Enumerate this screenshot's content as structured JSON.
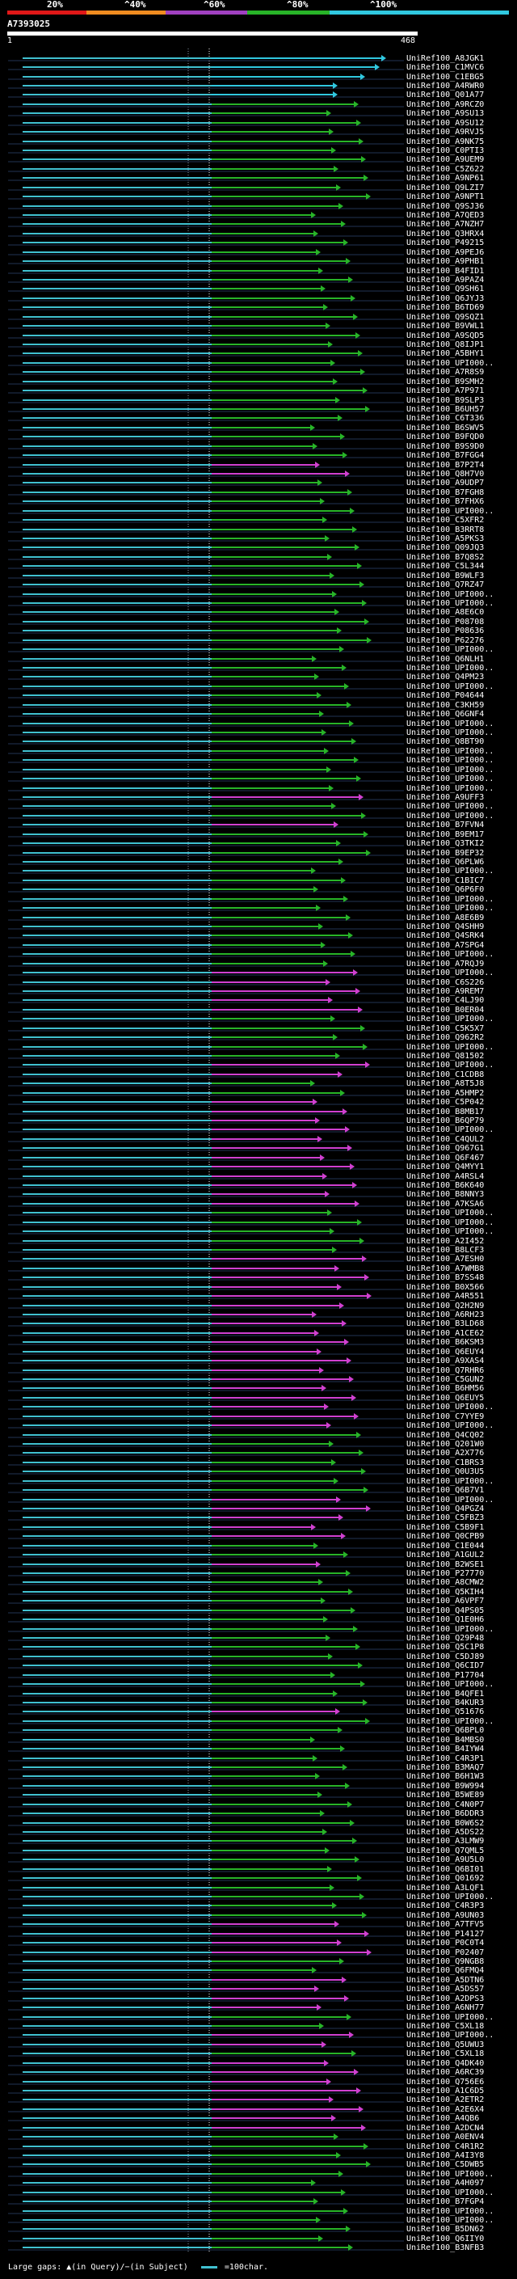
{
  "colors": {
    "background": "#000000",
    "identity_lt20": "#e01818",
    "identity_20_40": "#f08c20",
    "identity_40_60": "#a040c0",
    "identity_60_80": "#28b428",
    "identity_80_100": "#30c8e0",
    "query_line": "#40c0d0",
    "ruler": "#ffffff",
    "row_separator": "#223355"
  },
  "identity_scale": [
    {
      "label": "20%",
      "color": "#e01818"
    },
    {
      "label": "^40%",
      "color": "#f08c20"
    },
    {
      "label": "^60%",
      "color": "#a040c0"
    },
    {
      "label": "^80%",
      "color": "#28b428"
    },
    {
      "label": "^100%",
      "color": "#30c8e0"
    }
  ],
  "query": {
    "id": "A7393025",
    "start": "1",
    "end": "468"
  },
  "hits": [
    {
      "label": "UniRef100_A8JGK1",
      "color": "cyan"
    },
    {
      "label": "UniRef100_C1MVC6",
      "color": "cyan"
    },
    {
      "label": "UniRef100_C1EBG5",
      "color": "cyan"
    },
    {
      "label": "UniRef100_A4RWR0",
      "color": "cyan"
    },
    {
      "label": "UniRef100_Q01A77",
      "color": "cyan"
    },
    {
      "label": "UniRef100_A9RCZ0",
      "color": "green"
    },
    {
      "label": "UniRef100_A9SU13",
      "color": "green"
    },
    {
      "label": "UniRef100_A9SU12",
      "color": "green"
    },
    {
      "label": "UniRef100_A9RVJ5",
      "color": "green"
    },
    {
      "label": "UniRef100_A9NK75",
      "color": "green"
    },
    {
      "label": "UniRef100_C0PTI3",
      "color": "green"
    },
    {
      "label": "UniRef100_A9UEM9",
      "color": "green"
    },
    {
      "label": "UniRef100_C5Z622",
      "color": "green"
    },
    {
      "label": "UniRef100_A9NP61",
      "color": "green"
    },
    {
      "label": "UniRef100_Q9LZI7",
      "color": "green"
    },
    {
      "label": "UniRef100_A9NPT1",
      "color": "green"
    },
    {
      "label": "UniRef100_Q9SJ36",
      "color": "green"
    },
    {
      "label": "UniRef100_A7QED3",
      "color": "green"
    },
    {
      "label": "UniRef100_A7NZH7",
      "color": "green"
    },
    {
      "label": "UniRef100_Q3HRX4",
      "color": "green"
    },
    {
      "label": "UniRef100_P49215",
      "color": "green"
    },
    {
      "label": "UniRef100_A9PEJ6",
      "color": "green"
    },
    {
      "label": "UniRef100_A9PHB1",
      "color": "green"
    },
    {
      "label": "UniRef100_B4FID1",
      "color": "green"
    },
    {
      "label": "UniRef100_A9PAZ4",
      "color": "green"
    },
    {
      "label": "UniRef100_Q9SH61",
      "color": "green"
    },
    {
      "label": "UniRef100_Q6JYJ3",
      "color": "green"
    },
    {
      "label": "UniRef100_B6TD69",
      "color": "green"
    },
    {
      "label": "UniRef100_Q9SQZ1",
      "color": "green"
    },
    {
      "label": "UniRef100_B9VWL1",
      "color": "green"
    },
    {
      "label": "UniRef100_A9SQD5",
      "color": "green"
    },
    {
      "label": "UniRef100_Q8IJP1",
      "color": "green"
    },
    {
      "label": "UniRef100_A5BHY1",
      "color": "green"
    },
    {
      "label": "UniRef100_UPI000..",
      "color": "green"
    },
    {
      "label": "UniRef100_A7R8S9",
      "color": "green"
    },
    {
      "label": "UniRef100_B9SMH2",
      "color": "green"
    },
    {
      "label": "UniRef100_A7P971",
      "color": "green"
    },
    {
      "label": "UniRef100_B9SLP3",
      "color": "green"
    },
    {
      "label": "UniRef100_B6UH57",
      "color": "green"
    },
    {
      "label": "UniRef100_C6T336",
      "color": "green"
    },
    {
      "label": "UniRef100_B6SWV5",
      "color": "green"
    },
    {
      "label": "UniRef100_B9FQD0",
      "color": "green"
    },
    {
      "label": "UniRef100_B9S9D0",
      "color": "green"
    },
    {
      "label": "UniRef100_B7FGG4",
      "color": "green"
    },
    {
      "label": "UniRef100_B7P2T4",
      "color": "magenta"
    },
    {
      "label": "UniRef100_Q8H7V0",
      "color": "magenta"
    },
    {
      "label": "UniRef100_A9UDP7",
      "color": "green"
    },
    {
      "label": "UniRef100_B7FGH8",
      "color": "green"
    },
    {
      "label": "UniRef100_B7FHX6",
      "color": "green"
    },
    {
      "label": "UniRef100_UPI000..",
      "color": "green"
    },
    {
      "label": "UniRef100_C5XFR2",
      "color": "green"
    },
    {
      "label": "UniRef100_B3RRT8",
      "color": "green"
    },
    {
      "label": "UniRef100_A5PKS3",
      "color": "green"
    },
    {
      "label": "UniRef100_Q09JQ3",
      "color": "green"
    },
    {
      "label": "UniRef100_B7Q8S2",
      "color": "green"
    },
    {
      "label": "UniRef100_C5L344",
      "color": "green"
    },
    {
      "label": "UniRef100_B9WLF3",
      "color": "green"
    },
    {
      "label": "UniRef100_Q7RZ47",
      "color": "green"
    },
    {
      "label": "UniRef100_UPI000..",
      "color": "green"
    },
    {
      "label": "UniRef100_UPI000..",
      "color": "green"
    },
    {
      "label": "UniRef100_A8E6C0",
      "color": "green"
    },
    {
      "label": "UniRef100_P08708",
      "color": "green"
    },
    {
      "label": "UniRef100_P08636",
      "color": "green"
    },
    {
      "label": "UniRef100_P62276",
      "color": "green"
    },
    {
      "label": "UniRef100_UPI000..",
      "color": "green"
    },
    {
      "label": "UniRef100_Q6NLH1",
      "color": "green"
    },
    {
      "label": "UniRef100_UPI000..",
      "color": "green"
    },
    {
      "label": "UniRef100_Q4PM23",
      "color": "green"
    },
    {
      "label": "UniRef100_UPI000..",
      "color": "green"
    },
    {
      "label": "UniRef100_P04644",
      "color": "green"
    },
    {
      "label": "UniRef100_C3KH59",
      "color": "green"
    },
    {
      "label": "UniRef100_Q6GNF4",
      "color": "green"
    },
    {
      "label": "UniRef100_UPI000..",
      "color": "green"
    },
    {
      "label": "UniRef100_UPI000..",
      "color": "green"
    },
    {
      "label": "UniRef100_Q8BT90",
      "color": "green"
    },
    {
      "label": "UniRef100_UPI000..",
      "color": "green"
    },
    {
      "label": "UniRef100_UPI000..",
      "color": "green"
    },
    {
      "label": "UniRef100_UPI000..",
      "color": "green"
    },
    {
      "label": "UniRef100_UPI000..",
      "color": "green"
    },
    {
      "label": "UniRef100_UPI000..",
      "color": "green"
    },
    {
      "label": "UniRef100_A9UFF3",
      "color": "magenta"
    },
    {
      "label": "UniRef100_UPI000..",
      "color": "green"
    },
    {
      "label": "UniRef100_UPI000..",
      "color": "green"
    },
    {
      "label": "UniRef100_B7FVN4",
      "color": "magenta"
    },
    {
      "label": "UniRef100_B9EM17",
      "color": "green"
    },
    {
      "label": "UniRef100_Q3TKI2",
      "color": "green"
    },
    {
      "label": "UniRef100_B9EP32",
      "color": "green"
    },
    {
      "label": "UniRef100_Q6PLW6",
      "color": "green"
    },
    {
      "label": "UniRef100_UPI000..",
      "color": "green"
    },
    {
      "label": "UniRef100_C1BIC7",
      "color": "green"
    },
    {
      "label": "UniRef100_Q6P6F0",
      "color": "green"
    },
    {
      "label": "UniRef100_UPI000..",
      "color": "green"
    },
    {
      "label": "UniRef100_UPI000..",
      "color": "green"
    },
    {
      "label": "UniRef100_A8E6B9",
      "color": "green"
    },
    {
      "label": "UniRef100_Q4SHH9",
      "color": "green"
    },
    {
      "label": "UniRef100_Q4SRK4",
      "color": "green"
    },
    {
      "label": "UniRef100_A7SPG4",
      "color": "green"
    },
    {
      "label": "UniRef100_UPI000..",
      "color": "green"
    },
    {
      "label": "UniRef100_A7RQJ9",
      "color": "green"
    },
    {
      "label": "UniRef100_UPI000..",
      "color": "magenta"
    },
    {
      "label": "UniRef100_C6S226",
      "color": "magenta"
    },
    {
      "label": "UniRef100_A9REM7",
      "color": "magenta"
    },
    {
      "label": "UniRef100_C4LJ90",
      "color": "magenta"
    },
    {
      "label": "UniRef100_B0ER04",
      "color": "magenta"
    },
    {
      "label": "UniRef100_UPI000..",
      "color": "green"
    },
    {
      "label": "UniRef100_C5K5X7",
      "color": "green"
    },
    {
      "label": "UniRef100_Q962R2",
      "color": "green"
    },
    {
      "label": "UniRef100_UPI000..",
      "color": "green"
    },
    {
      "label": "UniRef100_Q81502",
      "color": "green"
    },
    {
      "label": "UniRef100_UPI000..",
      "color": "magenta"
    },
    {
      "label": "UniRef100_C1CDB8",
      "color": "magenta"
    },
    {
      "label": "UniRef100_A8T5J8",
      "color": "green"
    },
    {
      "label": "UniRef100_A5HMP2",
      "color": "green"
    },
    {
      "label": "UniRef100_C5P042",
      "color": "magenta"
    },
    {
      "label": "UniRef100_B8MB17",
      "color": "magenta"
    },
    {
      "label": "UniRef100_B6QP79",
      "color": "magenta"
    },
    {
      "label": "UniRef100_UPI000..",
      "color": "magenta"
    },
    {
      "label": "UniRef100_C4QUL2",
      "color": "magenta"
    },
    {
      "label": "UniRef100_Q967G1",
      "color": "magenta"
    },
    {
      "label": "UniRef100_Q6F467",
      "color": "magenta"
    },
    {
      "label": "UniRef100_Q4MYY1",
      "color": "magenta"
    },
    {
      "label": "UniRef100_A4RSL4",
      "color": "magenta"
    },
    {
      "label": "UniRef100_B6K640",
      "color": "magenta"
    },
    {
      "label": "UniRef100_B8NNY3",
      "color": "magenta"
    },
    {
      "label": "UniRef100_A7KSA6",
      "color": "magenta"
    },
    {
      "label": "UniRef100_UPI000..",
      "color": "green"
    },
    {
      "label": "UniRef100_UPI000..",
      "color": "green"
    },
    {
      "label": "UniRef100_UPI000..",
      "color": "green"
    },
    {
      "label": "UniRef100_A2I452",
      "color": "green"
    },
    {
      "label": "UniRef100_B8LCF3",
      "color": "green"
    },
    {
      "label": "UniRef100_A7ESH0",
      "color": "magenta"
    },
    {
      "label": "UniRef100_A7WMB8",
      "color": "magenta"
    },
    {
      "label": "UniRef100_B7SS48",
      "color": "magenta"
    },
    {
      "label": "UniRef100_B0X566",
      "color": "magenta"
    },
    {
      "label": "UniRef100_A4R551",
      "color": "magenta"
    },
    {
      "label": "UniRef100_Q2H2N9",
      "color": "magenta"
    },
    {
      "label": "UniRef100_A6RH23",
      "color": "magenta"
    },
    {
      "label": "UniRef100_B3LD68",
      "color": "magenta"
    },
    {
      "label": "UniRef100_A1CE62",
      "color": "magenta"
    },
    {
      "label": "UniRef100_B6KSM3",
      "color": "magenta"
    },
    {
      "label": "UniRef100_Q6EUY4",
      "color": "magenta"
    },
    {
      "label": "UniRef100_A9XAS4",
      "color": "magenta"
    },
    {
      "label": "UniRef100_Q7RHR6",
      "color": "magenta"
    },
    {
      "label": "UniRef100_C5GUN2",
      "color": "magenta"
    },
    {
      "label": "UniRef100_B6HM56",
      "color": "magenta"
    },
    {
      "label": "UniRef100_Q6EUY5",
      "color": "magenta"
    },
    {
      "label": "UniRef100_UPI000..",
      "color": "magenta"
    },
    {
      "label": "UniRef100_C7YYE9",
      "color": "magenta"
    },
    {
      "label": "UniRef100_UPI000..",
      "color": "magenta"
    },
    {
      "label": "UniRef100_Q4CQ02",
      "color": "green"
    },
    {
      "label": "UniRef100_Q201W0",
      "color": "green"
    },
    {
      "label": "UniRef100_A2X776",
      "color": "green"
    },
    {
      "label": "UniRef100_C1BRS3",
      "color": "green"
    },
    {
      "label": "UniRef100_Q0U3U5",
      "color": "green"
    },
    {
      "label": "UniRef100_UPI000..",
      "color": "green"
    },
    {
      "label": "UniRef100_Q6B7V1",
      "color": "green"
    },
    {
      "label": "UniRef100_UPI000..",
      "color": "magenta"
    },
    {
      "label": "UniRef100_Q4PGZ4",
      "color": "magenta"
    },
    {
      "label": "UniRef100_C5FBZ3",
      "color": "magenta"
    },
    {
      "label": "UniRef100_C5B9F1",
      "color": "magenta"
    },
    {
      "label": "UniRef100_Q0CPB9",
      "color": "magenta"
    },
    {
      "label": "UniRef100_C1E044",
      "color": "green"
    },
    {
      "label": "UniRef100_A1GUL2",
      "color": "green"
    },
    {
      "label": "UniRef100_B2WSE1",
      "color": "magenta"
    },
    {
      "label": "UniRef100_P27770",
      "color": "green"
    },
    {
      "label": "UniRef100_A8CMW2",
      "color": "green"
    },
    {
      "label": "UniRef100_Q5KIH4",
      "color": "green"
    },
    {
      "label": "UniRef100_A6VPF7",
      "color": "green"
    },
    {
      "label": "UniRef100_Q4PS05",
      "color": "green"
    },
    {
      "label": "UniRef100_Q1E0H6",
      "color": "green"
    },
    {
      "label": "UniRef100_UPI000..",
      "color": "green"
    },
    {
      "label": "UniRef100_Q29P48",
      "color": "green"
    },
    {
      "label": "UniRef100_Q5C1P8",
      "color": "green"
    },
    {
      "label": "UniRef100_C5DJ89",
      "color": "green"
    },
    {
      "label": "UniRef100_Q6CID7",
      "color": "green"
    },
    {
      "label": "UniRef100_P17704",
      "color": "green"
    },
    {
      "label": "UniRef100_UPI000..",
      "color": "green"
    },
    {
      "label": "UniRef100_B4QFE1",
      "color": "green"
    },
    {
      "label": "UniRef100_B4KUR3",
      "color": "green"
    },
    {
      "label": "UniRef100_Q51676",
      "color": "magenta"
    },
    {
      "label": "UniRef100_UPI000..",
      "color": "green"
    },
    {
      "label": "UniRef100_Q6BPL0",
      "color": "green"
    },
    {
      "label": "UniRef100_B4MBS0",
      "color": "green"
    },
    {
      "label": "UniRef100_B4IYW4",
      "color": "green"
    },
    {
      "label": "UniRef100_C4R3P1",
      "color": "green"
    },
    {
      "label": "UniRef100_B3MAQ7",
      "color": "green"
    },
    {
      "label": "UniRef100_B6H1W3",
      "color": "green"
    },
    {
      "label": "UniRef100_B9W994",
      "color": "green"
    },
    {
      "label": "UniRef100_B5WE89",
      "color": "green"
    },
    {
      "label": "UniRef100_C4N0P7",
      "color": "green"
    },
    {
      "label": "UniRef100_B6DDR3",
      "color": "green"
    },
    {
      "label": "UniRef100_B0W6S2",
      "color": "green"
    },
    {
      "label": "UniRef100_A5DS22",
      "color": "green"
    },
    {
      "label": "UniRef100_A3LMW9",
      "color": "green"
    },
    {
      "label": "UniRef100_Q7QML5",
      "color": "green"
    },
    {
      "label": "UniRef100_A9U5L0",
      "color": "green"
    },
    {
      "label": "UniRef100_Q6BI01",
      "color": "green"
    },
    {
      "label": "UniRef100_Q01692",
      "color": "green"
    },
    {
      "label": "UniRef100_A3LQF1",
      "color": "green"
    },
    {
      "label": "UniRef100_UPI000..",
      "color": "green"
    },
    {
      "label": "UniRef100_C4R3P3",
      "color": "green"
    },
    {
      "label": "UniRef100_A9UN03",
      "color": "green"
    },
    {
      "label": "UniRef100_A7TFV5",
      "color": "magenta"
    },
    {
      "label": "UniRef100_P14127",
      "color": "magenta"
    },
    {
      "label": "UniRef100_P0C0T4",
      "color": "magenta"
    },
    {
      "label": "UniRef100_P02407",
      "color": "magenta"
    },
    {
      "label": "UniRef100_Q9NGB8",
      "color": "green"
    },
    {
      "label": "UniRef100_Q6FMQ4",
      "color": "green"
    },
    {
      "label": "UniRef100_A5DTN6",
      "color": "magenta"
    },
    {
      "label": "UniRef100_A5DS57",
      "color": "magenta"
    },
    {
      "label": "UniRef100_A2DPS3",
      "color": "magenta"
    },
    {
      "label": "UniRef100_A6NH77",
      "color": "magenta"
    },
    {
      "label": "UniRef100_UPI000..",
      "color": "green"
    },
    {
      "label": "UniRef100_C5XL18",
      "color": "green"
    },
    {
      "label": "UniRef100_UPI000..",
      "color": "magenta"
    },
    {
      "label": "UniRef100_Q5UWU3",
      "color": "magenta"
    },
    {
      "label": "UniRef100_C5XL18",
      "color": "green"
    },
    {
      "label": "UniRef100_Q4DK40",
      "color": "magenta"
    },
    {
      "label": "UniRef100_A6RC39",
      "color": "magenta"
    },
    {
      "label": "UniRef100_Q756E6",
      "color": "magenta"
    },
    {
      "label": "UniRef100_A1C6D5",
      "color": "magenta"
    },
    {
      "label": "UniRef100_A2ETR2",
      "color": "magenta"
    },
    {
      "label": "UniRef100_A2E6X4",
      "color": "magenta"
    },
    {
      "label": "UniRef100_A4QB6",
      "color": "magenta"
    },
    {
      "label": "UniRef100_A2DCN4",
      "color": "magenta"
    },
    {
      "label": "UniRef100_A0ENV4",
      "color": "green"
    },
    {
      "label": "UniRef100_C4R1R2",
      "color": "green"
    },
    {
      "label": "UniRef100_A4I3Y8",
      "color": "green"
    },
    {
      "label": "UniRef100_C5DWB5",
      "color": "green"
    },
    {
      "label": "UniRef100_UPI000..",
      "color": "green"
    },
    {
      "label": "UniRef100_A4H097",
      "color": "green"
    },
    {
      "label": "UniRef100_UPI000..",
      "color": "green"
    },
    {
      "label": "UniRef100_B7FGP4",
      "color": "green"
    },
    {
      "label": "UniRef100_UPI000..",
      "color": "green"
    },
    {
      "label": "UniRef100_UPI000..",
      "color": "green"
    },
    {
      "label": "UniRef100_B5DN62",
      "color": "green"
    },
    {
      "label": "UniRef100_Q6IIY0",
      "color": "green"
    },
    {
      "label": "UniRef100_B3NFB3",
      "color": "green"
    }
  ],
  "footer": {
    "text": "Large gaps: ▲(in Query)/−(in Subject)",
    "legend": "=100char."
  }
}
